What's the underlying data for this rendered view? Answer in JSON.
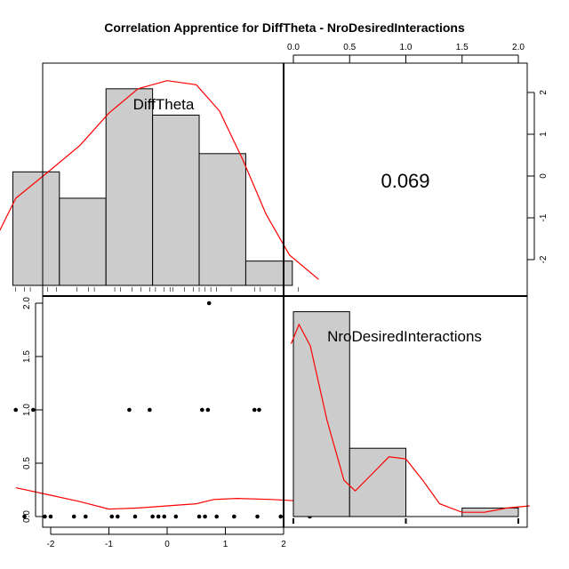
{
  "chart_data": {
    "type": "pairs",
    "title": "Correlation Apprentice for DiffTheta - NroDesiredInteractions",
    "variables": [
      "DiffTheta",
      "NroDesiredInteractions"
    ],
    "correlation": "0.069",
    "colors": {
      "bar_fill": "#cccccc",
      "curve": "#ff0000",
      "points": "#000000"
    },
    "hist_difftheta": {
      "breaks": [
        -2.5,
        -2.0,
        -1.5,
        -1.0,
        -0.5,
        0.0,
        0.5,
        1.0,
        1.5,
        2.0,
        2.5
      ],
      "bins": [
        {
          "x0": -2.65,
          "x1": -1.85,
          "height": 0.56
        },
        {
          "x0": -1.85,
          "x1": -1.05,
          "height": 0.43
        },
        {
          "x0": -1.05,
          "x1": -0.25,
          "height": 0.97
        },
        {
          "x0": -0.25,
          "x1": 0.55,
          "height": 0.84
        },
        {
          "x0": 0.55,
          "x1": 1.35,
          "height": 0.65
        },
        {
          "x0": 1.35,
          "x1": 2.15,
          "height": 0.12
        }
      ],
      "density_curve": [
        [
          -3.1,
          0.14
        ],
        [
          -2.6,
          0.43
        ],
        [
          -2.0,
          0.57
        ],
        [
          -1.5,
          0.69
        ],
        [
          -1.0,
          0.85
        ],
        [
          -0.5,
          0.97
        ],
        [
          0.0,
          1.01
        ],
        [
          0.5,
          0.99
        ],
        [
          0.9,
          0.86
        ],
        [
          1.3,
          0.62
        ],
        [
          1.7,
          0.35
        ],
        [
          2.1,
          0.15
        ],
        [
          2.6,
          0.03
        ]
      ],
      "rug": [
        -2.6,
        -2.45,
        -2.35,
        -2.05,
        -1.9,
        -1.55,
        -1.35,
        -1.25,
        -0.9,
        -0.8,
        -0.6,
        -0.45,
        -0.3,
        -0.2,
        -0.05,
        0.05,
        0.1,
        0.3,
        0.45,
        0.55,
        0.65,
        0.75,
        0.85,
        1.1,
        1.5,
        1.6,
        1.85,
        2.25
      ]
    },
    "hist_nrodesired": {
      "bins": [
        {
          "x0": 0.0,
          "x1": 0.5,
          "height": 0.96
        },
        {
          "x0": 0.5,
          "x1": 1.0,
          "height": 0.32
        },
        {
          "x0": 1.0,
          "x1": 1.5,
          "height": 0.0
        },
        {
          "x0": 1.5,
          "x1": 2.0,
          "height": 0.04
        }
      ],
      "density_curve": [
        [
          -0.02,
          0.81
        ],
        [
          0.05,
          0.9
        ],
        [
          0.15,
          0.8
        ],
        [
          0.3,
          0.45
        ],
        [
          0.45,
          0.17
        ],
        [
          0.55,
          0.12
        ],
        [
          0.7,
          0.2
        ],
        [
          0.85,
          0.28
        ],
        [
          1.0,
          0.27
        ],
        [
          1.15,
          0.17
        ],
        [
          1.3,
          0.06
        ],
        [
          1.5,
          0.02
        ],
        [
          1.7,
          0.02
        ],
        [
          1.9,
          0.04
        ],
        [
          2.1,
          0.05
        ]
      ],
      "rug": [
        0.0,
        1.0,
        2.0
      ]
    },
    "scatter": {
      "xlabel": "",
      "ylabel": "",
      "xlim": [
        -2.65,
        2.65
      ],
      "ylim": [
        -0.08,
        2.08
      ],
      "points": [
        [
          -2.6,
          1
        ],
        [
          -2.3,
          1
        ],
        [
          -0.65,
          1
        ],
        [
          -0.3,
          1
        ],
        [
          0.6,
          1
        ],
        [
          0.7,
          1
        ],
        [
          1.5,
          1
        ],
        [
          1.58,
          1
        ],
        [
          0.72,
          2
        ],
        [
          -2.45,
          0
        ],
        [
          -2.1,
          0
        ],
        [
          -2.0,
          0
        ],
        [
          -1.6,
          0
        ],
        [
          -1.4,
          0
        ],
        [
          -0.95,
          0
        ],
        [
          -0.85,
          0
        ],
        [
          -0.55,
          0
        ],
        [
          -0.25,
          0
        ],
        [
          -0.15,
          0
        ],
        [
          -0.05,
          0
        ],
        [
          0.15,
          0
        ],
        [
          0.55,
          0
        ],
        [
          0.65,
          0
        ],
        [
          0.85,
          0
        ],
        [
          1.15,
          0
        ],
        [
          1.55,
          0
        ],
        [
          1.95,
          0
        ],
        [
          2.45,
          0
        ]
      ],
      "loess": [
        [
          -2.6,
          0.27
        ],
        [
          -2.0,
          0.2
        ],
        [
          -1.5,
          0.14
        ],
        [
          -1.0,
          0.07
        ],
        [
          -0.5,
          0.08
        ],
        [
          0.0,
          0.1
        ],
        [
          0.5,
          0.12
        ],
        [
          0.8,
          0.16
        ],
        [
          1.2,
          0.17
        ],
        [
          1.8,
          0.16
        ],
        [
          2.45,
          0.14
        ]
      ]
    },
    "axes": {
      "bottom_ticks": [
        "-2",
        "-1",
        "0",
        "1",
        "2"
      ],
      "left_ticks": [
        "0.0",
        "0.5",
        "1.0",
        "1.5",
        "2.0"
      ],
      "top_ticks": [
        "0.0",
        "0.5",
        "1.0",
        "1.5",
        "2.0"
      ],
      "right_ticks": [
        "2",
        "1",
        "0",
        "-1",
        "-2"
      ]
    }
  }
}
